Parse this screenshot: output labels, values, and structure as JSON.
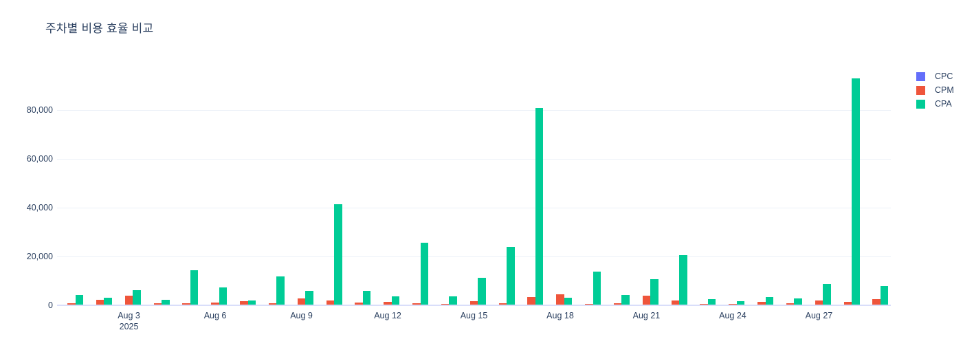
{
  "chart_data": {
    "type": "bar",
    "barmode": "group",
    "title": "주차별 비용 효율 비교",
    "x_dates": [
      "Aug 1",
      "Aug 2",
      "Aug 3",
      "Aug 4",
      "Aug 5",
      "Aug 6",
      "Aug 7",
      "Aug 8",
      "Aug 9",
      "Aug 10",
      "Aug 11",
      "Aug 12",
      "Aug 13",
      "Aug 14",
      "Aug 15",
      "Aug 16",
      "Aug 17",
      "Aug 18",
      "Aug 19",
      "Aug 20",
      "Aug 21",
      "Aug 22",
      "Aug 23",
      "Aug 24",
      "Aug 25",
      "Aug 26",
      "Aug 27",
      "Aug 28",
      "Aug 29"
    ],
    "year": "2025",
    "series": [
      {
        "name": "CPC",
        "color": "#636EFA",
        "values": [
          300,
          300,
          300,
          300,
          300,
          300,
          300,
          300,
          300,
          300,
          300,
          300,
          300,
          300,
          300,
          300,
          300,
          300,
          300,
          300,
          300,
          300,
          300,
          300,
          300,
          300,
          300,
          300,
          300
        ]
      },
      {
        "name": "CPM",
        "color": "#EF553B",
        "values": [
          900,
          2300,
          3900,
          900,
          900,
          1000,
          1600,
          850,
          2700,
          1900,
          1100,
          1300,
          750,
          700,
          1800,
          900,
          3500,
          4400,
          600,
          900,
          4000,
          2100,
          700,
          700,
          1300,
          800,
          2100,
          1500,
          2600
        ]
      },
      {
        "name": "CPA",
        "color": "#00CC96",
        "values": [
          4200,
          3100,
          6100,
          2200,
          14500,
          7300,
          1900,
          11700,
          5800,
          41500,
          6000,
          3800,
          25600,
          3600,
          11400,
          24000,
          81000,
          3100,
          13700,
          4300,
          10600,
          20600,
          2400,
          1800,
          3400,
          2900,
          8600,
          93000,
          7800
        ]
      }
    ],
    "y_ticks": [
      {
        "value": 0,
        "label": "0"
      },
      {
        "value": 20000,
        "label": "20,000"
      },
      {
        "value": 40000,
        "label": "40,000"
      },
      {
        "value": 60000,
        "label": "60,000"
      },
      {
        "value": 80000,
        "label": "80,000"
      }
    ],
    "x_ticks": [
      {
        "index": 2,
        "label": "Aug 3",
        "sub": "2025"
      },
      {
        "index": 5,
        "label": "Aug 6"
      },
      {
        "index": 8,
        "label": "Aug 9"
      },
      {
        "index": 11,
        "label": "Aug 12"
      },
      {
        "index": 14,
        "label": "Aug 15"
      },
      {
        "index": 17,
        "label": "Aug 18"
      },
      {
        "index": 20,
        "label": "Aug 21"
      },
      {
        "index": 23,
        "label": "Aug 24"
      },
      {
        "index": 26,
        "label": "Aug 27"
      }
    ],
    "ylim": [
      0,
      97800
    ],
    "grid": true,
    "legend_position": "top-right"
  },
  "colors": {
    "text": "#2A3F5F",
    "gridline": "#EBF0F8",
    "zeroline": "#D9DEFA",
    "background": "#FFFFFF"
  }
}
